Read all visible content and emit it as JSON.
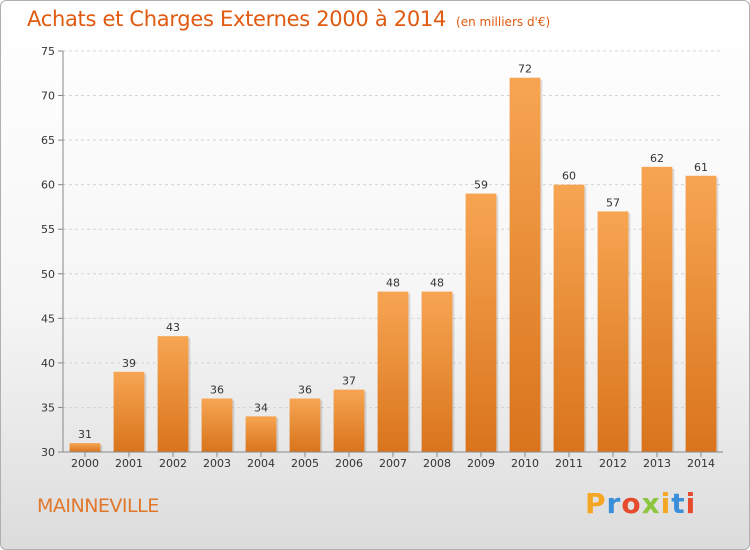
{
  "header": {
    "title": "Achats et Charges Externes 2000 à 2014",
    "subtitle": "(en milliers d'€)"
  },
  "footer": {
    "city": "MAINNEVILLE",
    "logo_letters": [
      "P",
      "r",
      "o",
      "x",
      "i",
      "t",
      "i"
    ],
    "logo_colors": [
      "#f5a623",
      "#3a8fd8",
      "#e64b2e",
      "#8cc63f",
      "#f5a623",
      "#3a8fd8",
      "#e64b2e"
    ]
  },
  "chart_data": {
    "type": "bar",
    "categories": [
      "2000",
      "2001",
      "2002",
      "2003",
      "2004",
      "2005",
      "2006",
      "2007",
      "2008",
      "2009",
      "2010",
      "2011",
      "2012",
      "2013",
      "2014"
    ],
    "values": [
      31,
      39,
      43,
      36,
      34,
      36,
      37,
      48,
      48,
      59,
      72,
      60,
      57,
      62,
      61
    ],
    "ylim": [
      30,
      75
    ],
    "yticks": [
      30,
      35,
      40,
      45,
      50,
      55,
      60,
      65,
      70,
      75
    ],
    "grid": true,
    "bar_color": "#f0963c"
  }
}
